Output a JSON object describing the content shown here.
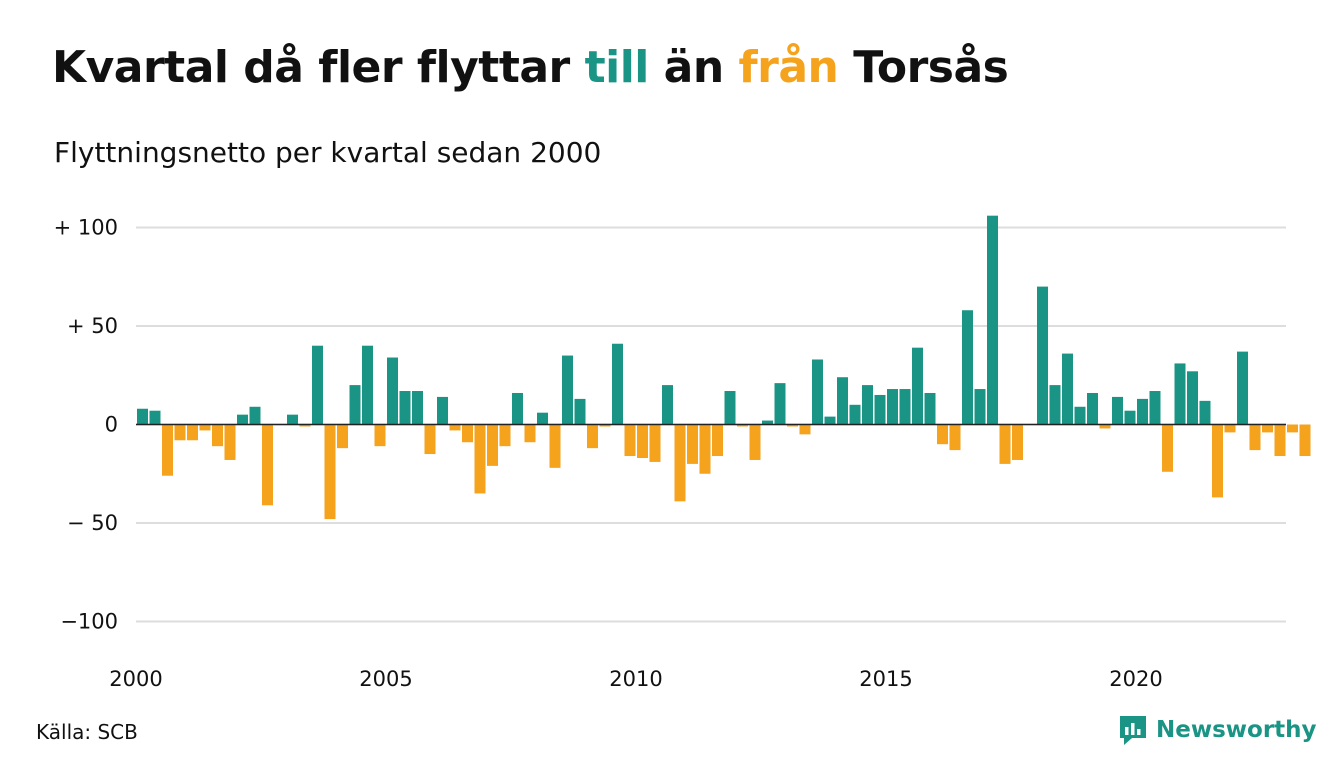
{
  "title": {
    "part1": "Kvartal då fler flyttar ",
    "highlight_in": "till",
    "part2": " än ",
    "highlight_out": "från",
    "part3": " Torsås"
  },
  "subtitle": "Flyttningsnetto per kvartal sedan 2000",
  "source": "Källa: SCB",
  "brand": {
    "name": "Newsworthy",
    "icon": "newsworthy-logo-icon"
  },
  "colors": {
    "positive": "#1a9485",
    "negative": "#f5a21d",
    "grid": "#dddddd"
  },
  "chart_data": {
    "type": "bar",
    "title": "Kvartal då fler flyttar till än från Torsås",
    "subtitle": "Flyttningsnetto per kvartal sedan 2000",
    "x_start": "2000-Q1",
    "x_ticks": [
      {
        "year": 2000,
        "label": "2000"
      },
      {
        "year": 2005,
        "label": "2005"
      },
      {
        "year": 2010,
        "label": "2010"
      },
      {
        "year": 2015,
        "label": "2015"
      },
      {
        "year": 2020,
        "label": "2020"
      }
    ],
    "y_ticks": [
      {
        "value": 100,
        "label": "+ 100"
      },
      {
        "value": 50,
        "label": "+  50"
      },
      {
        "value": 0,
        "label": "0"
      },
      {
        "value": -50,
        "label": "− 50"
      },
      {
        "value": -100,
        "label": "−100"
      }
    ],
    "ylim": [
      -100,
      100
    ],
    "grid": true,
    "values": [
      8,
      7,
      -26,
      -8,
      -8,
      -3,
      -11,
      -18,
      5,
      9,
      -41,
      0,
      5,
      -1,
      40,
      -48,
      -12,
      20,
      40,
      -11,
      34,
      17,
      17,
      -15,
      14,
      -3,
      -9,
      -35,
      -21,
      -11,
      16,
      -9,
      6,
      -22,
      35,
      13,
      -12,
      -1,
      41,
      -16,
      -17,
      -19,
      20,
      -39,
      -20,
      -25,
      -16,
      17,
      -1,
      -18,
      2,
      21,
      -1,
      -5,
      33,
      4,
      24,
      10,
      20,
      15,
      18,
      18,
      39,
      16,
      -10,
      -13,
      58,
      18,
      106,
      -20,
      -18,
      0,
      70,
      20,
      36,
      9,
      16,
      -2,
      14,
      7,
      13,
      17,
      -24,
      31,
      27,
      12,
      -37,
      -4,
      37,
      -13,
      -4,
      -16,
      -4,
      -16
    ]
  }
}
